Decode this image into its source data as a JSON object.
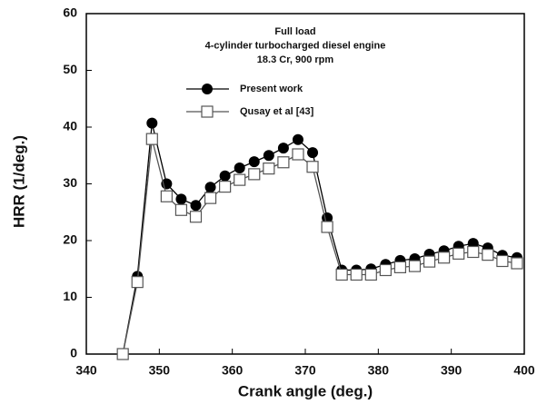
{
  "chart_data": {
    "type": "line",
    "annotations": [
      "Full load",
      "4-cylinder turbocharged diesel engine",
      "18.3 Cr, 900 rpm"
    ],
    "x_label": "Crank angle (deg.)",
    "y_label": "HRR (1/deg.)",
    "xlim": [
      340,
      400
    ],
    "xticks": [
      340,
      350,
      360,
      370,
      380,
      390,
      400
    ],
    "ylim": [
      0,
      60
    ],
    "yticks": [
      0,
      10,
      20,
      30,
      40,
      50,
      60
    ],
    "x": [
      345,
      347,
      349,
      351,
      353,
      355,
      357,
      359,
      361,
      363,
      365,
      367,
      369,
      371,
      373,
      375,
      377,
      379,
      381,
      383,
      385,
      387,
      389,
      391,
      393,
      395,
      397,
      399
    ],
    "series": [
      {
        "name": "Present work",
        "color": "#000000",
        "marker": "circle",
        "values": [
          0,
          13.7,
          40.7,
          30,
          27.3,
          26.2,
          29.4,
          31.4,
          32.8,
          33.9,
          35,
          36.3,
          37.8,
          35.5,
          24,
          14.8,
          14.8,
          15,
          15.8,
          16.5,
          16.8,
          17.6,
          18.2,
          19,
          19.5,
          18.7,
          17.4,
          17
        ]
      },
      {
        "name": "Qusay et al [43]",
        "color": "#555555",
        "marker": "square",
        "values": [
          0,
          12.7,
          37.9,
          27.8,
          25.4,
          24.2,
          27.5,
          29.5,
          30.7,
          31.7,
          32.7,
          33.8,
          35.2,
          33,
          22.4,
          14,
          14,
          14,
          14.8,
          15.3,
          15.5,
          16.3,
          17,
          17.7,
          18,
          17.5,
          16.4,
          16
        ]
      }
    ]
  }
}
